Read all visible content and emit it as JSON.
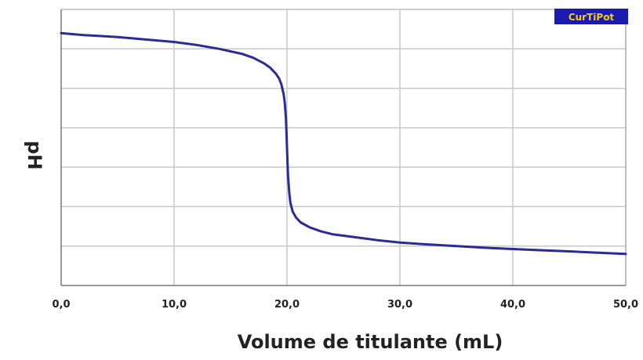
{
  "chart_data": {
    "type": "line",
    "title": "",
    "xlabel": "Volume de titulante (mL)",
    "ylabel": "pH",
    "xlim": [
      0,
      50
    ],
    "ylim": [
      0,
      14
    ],
    "x_ticks": [
      "0,0",
      "10,0",
      "20,0",
      "30,0",
      "40,0",
      "50,0"
    ],
    "x_tick_values": [
      0,
      10,
      20,
      30,
      40,
      50
    ],
    "y_gridlines": [
      2,
      4,
      6,
      8,
      10,
      12,
      14
    ],
    "grid": true,
    "legend": "none",
    "series": [
      {
        "color": "#2a2a9a",
        "x": [
          0,
          2,
          5,
          8,
          10,
          12,
          14,
          16,
          17,
          18,
          18.5,
          19,
          19.3,
          19.5,
          19.7,
          19.8,
          19.9,
          19.95,
          20,
          20.05,
          20.1,
          20.2,
          20.3,
          20.5,
          20.8,
          21.2,
          22,
          23,
          24,
          26,
          28,
          30,
          32,
          35,
          38,
          40,
          42,
          45,
          48,
          50
        ],
        "y": [
          12.8,
          12.7,
          12.6,
          12.45,
          12.35,
          12.2,
          12.0,
          11.75,
          11.55,
          11.25,
          11.05,
          10.75,
          10.5,
          10.2,
          9.7,
          9.3,
          8.5,
          7.8,
          7.0,
          6.2,
          5.5,
          4.7,
          4.2,
          3.75,
          3.45,
          3.2,
          2.95,
          2.75,
          2.6,
          2.45,
          2.3,
          2.18,
          2.1,
          2.0,
          1.9,
          1.85,
          1.8,
          1.73,
          1.65,
          1.6
        ]
      }
    ]
  },
  "watermark": {
    "text": "CurTiPot",
    "bg_color": "#1a1ab0",
    "text_color": "#f5d000"
  }
}
